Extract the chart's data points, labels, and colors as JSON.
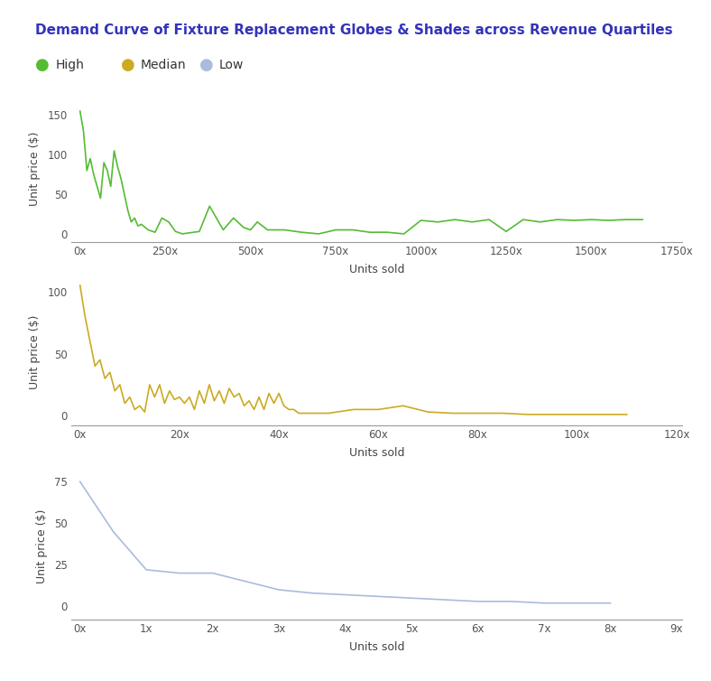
{
  "title": "Demand Curve of Fixture Replacement Globes & Shades across Revenue Quartiles",
  "title_color": "#3333bb",
  "background_color": "#f8f8fc",
  "legend_items": [
    "High",
    "Median",
    "Low"
  ],
  "legend_colors": [
    "#55bb33",
    "#ccaa22",
    "#aabbdd"
  ],
  "subplots": [
    {
      "label": "High",
      "color": "#55bb33",
      "xlabel": "Units sold",
      "ylabel": "Unit price ($)",
      "x_max": 1750,
      "x_tick_interval": 250,
      "x_suffix": "x",
      "y_min": -10,
      "y_max": 175,
      "y_ticks": [
        0,
        50,
        100,
        150
      ]
    },
    {
      "label": "Median",
      "color": "#ccaa22",
      "xlabel": "Units sold",
      "ylabel": "Unit price ($)",
      "x_max": 120,
      "x_tick_interval": 20,
      "x_suffix": "x",
      "y_min": -8,
      "y_max": 110,
      "y_ticks": [
        0,
        50,
        100
      ]
    },
    {
      "label": "Low",
      "color": "#aabbdd",
      "xlabel": "Units sold",
      "ylabel": "Unit price ($)",
      "x_max": 9,
      "x_tick_interval": 1,
      "x_suffix": "x",
      "y_min": -8,
      "y_max": 80,
      "y_ticks": [
        0,
        25,
        50,
        75
      ]
    }
  ],
  "high_x": [
    0,
    10,
    20,
    30,
    40,
    50,
    60,
    70,
    80,
    90,
    100,
    110,
    120,
    130,
    140,
    150,
    160,
    170,
    180,
    200,
    220,
    240,
    260,
    280,
    300,
    350,
    380,
    420,
    450,
    480,
    500,
    520,
    550,
    600,
    650,
    700,
    750,
    800,
    850,
    900,
    950,
    1000,
    1050,
    1100,
    1150,
    1200,
    1250,
    1300,
    1350,
    1400,
    1450,
    1500,
    1550,
    1600,
    1650
  ],
  "high_y": [
    155,
    130,
    80,
    95,
    75,
    60,
    45,
    90,
    80,
    60,
    105,
    85,
    70,
    50,
    30,
    15,
    20,
    10,
    12,
    5,
    2,
    20,
    15,
    3,
    0,
    3,
    35,
    5,
    20,
    8,
    5,
    15,
    5,
    5,
    2,
    0,
    5,
    5,
    2,
    2,
    0,
    17,
    15,
    18,
    15,
    18,
    3,
    18,
    15,
    18,
    17,
    18,
    17,
    18,
    18
  ],
  "median_x": [
    0,
    1,
    2,
    3,
    4,
    5,
    6,
    7,
    8,
    9,
    10,
    11,
    12,
    13,
    14,
    15,
    16,
    17,
    18,
    19,
    20,
    21,
    22,
    23,
    24,
    25,
    26,
    27,
    28,
    29,
    30,
    31,
    32,
    33,
    34,
    35,
    36,
    37,
    38,
    39,
    40,
    41,
    42,
    43,
    44,
    45,
    50,
    55,
    60,
    65,
    70,
    75,
    80,
    85,
    90,
    95,
    100,
    105,
    110
  ],
  "median_y": [
    105,
    80,
    60,
    40,
    45,
    30,
    35,
    20,
    25,
    10,
    15,
    5,
    8,
    3,
    25,
    15,
    25,
    10,
    20,
    13,
    15,
    10,
    15,
    5,
    20,
    10,
    25,
    12,
    20,
    10,
    22,
    15,
    18,
    8,
    12,
    5,
    15,
    5,
    18,
    10,
    18,
    8,
    5,
    5,
    2,
    2,
    2,
    5,
    5,
    8,
    3,
    2,
    2,
    2,
    1,
    1,
    1,
    1,
    1
  ],
  "low_x": [
    0,
    0.5,
    1.0,
    1.5,
    2.0,
    2.5,
    3.0,
    3.5,
    4.0,
    4.5,
    5.0,
    5.5,
    6.0,
    6.5,
    7.0,
    7.5,
    8.0
  ],
  "low_y": [
    75,
    45,
    22,
    20,
    20,
    15,
    10,
    8,
    7,
    6,
    5,
    4,
    3,
    3,
    2,
    2,
    2
  ]
}
